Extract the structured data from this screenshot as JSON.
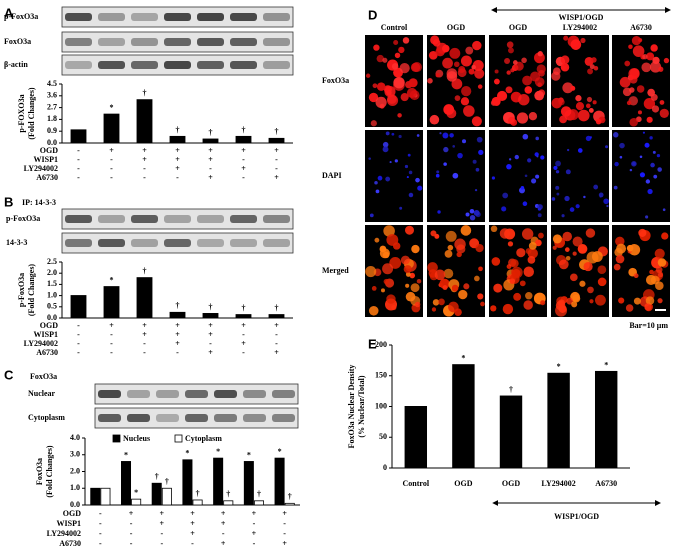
{
  "chart_data": [
    {
      "type": "bar",
      "panel": "A",
      "blots": [
        "p-FoxO3a",
        "FoxO3a",
        "β-actin"
      ],
      "ylabel": [
        "p-FOXO3a",
        "(Fold Changes)"
      ],
      "ylim": [
        0,
        4.5
      ],
      "yticks": [
        {
          "value": 0,
          "label": "0.0"
        },
        0.9,
        1.8,
        2.7,
        3.6,
        4.5
      ],
      "values": [
        1.0,
        2.2,
        3.3,
        0.5,
        0.3,
        0.5,
        0.35
      ],
      "color": "#000000",
      "annotations": [
        null,
        "*",
        "†",
        "†",
        "†",
        "†",
        "†"
      ],
      "conditions": [
        {
          "name": "OGD",
          "values": [
            "-",
            "+",
            "+",
            "+",
            "+",
            "+",
            "+"
          ]
        },
        {
          "name": "WISP1",
          "values": [
            "-",
            "-",
            "+",
            "+",
            "+",
            "-",
            "-"
          ]
        },
        {
          "name": "LY294002",
          "values": [
            "-",
            "-",
            "-",
            "+",
            "-",
            "+",
            "-"
          ]
        },
        {
          "name": "A6730",
          "values": [
            "-",
            "-",
            "-",
            "-",
            "+",
            "-",
            "+"
          ]
        }
      ]
    },
    {
      "type": "bar",
      "panel": "B",
      "ip_label": "IP: 14-3-3",
      "blots": [
        "p-FoxO3a",
        "14-3-3"
      ],
      "ylabel": [
        "p-FoxO3a",
        "(Fold Changes)"
      ],
      "ylim": [
        0,
        2.5
      ],
      "yticks": [
        {
          "value": 0,
          "label": "0.0"
        },
        0.5,
        {
          "value": 1,
          "label": "1.0"
        },
        1.5,
        {
          "value": 2,
          "label": "2.0"
        },
        2.5
      ],
      "values": [
        1.0,
        1.4,
        1.8,
        0.25,
        0.2,
        0.15,
        0.15
      ],
      "color": "#000000",
      "annotations": [
        null,
        "*",
        "†",
        "†",
        "†",
        "†",
        "†"
      ],
      "conditions": [
        {
          "name": "OGD",
          "values": [
            "-",
            "+",
            "+",
            "+",
            "+",
            "+",
            "+"
          ]
        },
        {
          "name": "WISP1",
          "values": [
            "-",
            "-",
            "+",
            "+",
            "+",
            "-",
            "-"
          ]
        },
        {
          "name": "LY294002",
          "values": [
            "-",
            "-",
            "-",
            "+",
            "-",
            "+",
            "-"
          ]
        },
        {
          "name": "A6730",
          "values": [
            "-",
            "-",
            "-",
            "-",
            "+",
            "-",
            "+"
          ]
        }
      ]
    },
    {
      "type": "grouped-bar",
      "panel": "C",
      "blot_title": "FoxO3a",
      "blots": [
        "Nuclear",
        "Cytoplasm"
      ],
      "ylabel": [
        "FoxO3a",
        "(Fold Changes)"
      ],
      "ylim": [
        0,
        4
      ],
      "yticks": [
        {
          "value": 0,
          "label": "0.0"
        },
        {
          "value": 1,
          "label": "1.0"
        },
        {
          "value": 2,
          "label": "2.0"
        },
        {
          "value": 3,
          "label": "3.0"
        },
        {
          "value": 4,
          "label": "4.0"
        }
      ],
      "legend": "top",
      "series": [
        {
          "name": "Nucleus",
          "color": "#000000",
          "values": [
            1.0,
            2.6,
            1.3,
            2.7,
            2.8,
            2.6,
            2.8
          ],
          "annotations": [
            null,
            "*",
            "†",
            "*",
            "*",
            "*",
            "*"
          ]
        },
        {
          "name": "Cytoplasm",
          "color": "#ffffff",
          "values": [
            1.0,
            0.35,
            1.0,
            0.3,
            0.25,
            0.25,
            0.1
          ],
          "annotations": [
            null,
            "*",
            "†",
            "†",
            "†",
            "†",
            "†"
          ]
        }
      ],
      "conditions": [
        {
          "name": "OGD",
          "values": [
            "-",
            "+",
            "+",
            "+",
            "+",
            "+",
            "+"
          ]
        },
        {
          "name": "WISP1",
          "values": [
            "-",
            "-",
            "+",
            "+",
            "+",
            "-",
            "-"
          ]
        },
        {
          "name": "LY294002",
          "values": [
            "-",
            "-",
            "-",
            "+",
            "-",
            "+",
            "-"
          ]
        },
        {
          "name": "A6730",
          "values": [
            "-",
            "-",
            "-",
            "-",
            "+",
            "-",
            "+"
          ]
        }
      ]
    },
    {
      "type": "bar",
      "panel": "E",
      "ylabel": [
        "FoxO3a Nuclear Density",
        "(% Nuclear/Total)"
      ],
      "ylim": [
        0,
        200
      ],
      "yticks": [
        0,
        50,
        100,
        150,
        200
      ],
      "categories": [
        "Control",
        "OGD",
        "OGD",
        "LY294002",
        "A6730"
      ],
      "values": [
        100,
        168,
        117,
        154,
        157
      ],
      "color": "#000000",
      "annotations": [
        null,
        "*",
        "†",
        "*",
        "*"
      ],
      "bracket_label": "WISP1/OGD"
    }
  ],
  "figure_d": {
    "panel": "D",
    "bracket_label": "WISP1/OGD",
    "columns": [
      "Control",
      "OGD",
      "OGD",
      "LY294002",
      "A6730"
    ],
    "rows": [
      "FoxO3a",
      "DAPI",
      "Merged"
    ],
    "scale_label": "Bar=10 μm"
  }
}
